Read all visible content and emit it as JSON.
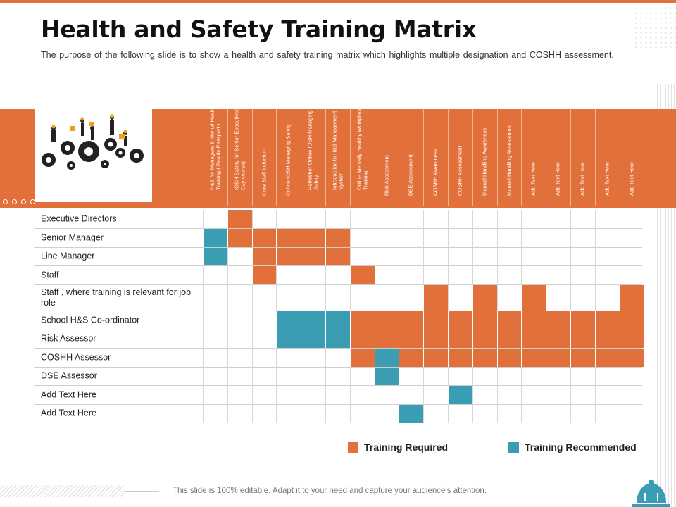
{
  "header": {
    "title": "Health and Safety Training Matrix",
    "subtitle": "The purpose of the following slide is to show a health and safety training matrix which highlights multiple designation and COSHH assessment."
  },
  "colors": {
    "required": "#e2703a",
    "recommended": "#3a9db3"
  },
  "columns": [
    "H&S for Managers & Mental Health Training ( People Passport )",
    "IOSH Safety for Senior Executives ( 1 Day course)",
    "Core Staff Induction",
    "Online IOSH Managing Safety",
    "Refresher Online IOSH Managing Safety",
    "Introduction to H&S Management System",
    "Online Mentally Healthy Workplace Training",
    "Risk Assessment",
    "DSE Assessment",
    "COSHH Awareness",
    "COSHH Assessment",
    "Manual Handling Awareness",
    "Manual Handling Assessment",
    "Add Text Here",
    "Add Text Here",
    "Add Text Here",
    "Add Text Here",
    "Add Text Here"
  ],
  "rows": [
    {
      "label": "Executive Directors",
      "cells": "-R----------------"
    },
    {
      "label": "Senior Manager",
      "cells": "CRRRRR------------"
    },
    {
      "label": "Line Manager",
      "cells": "C-RRRR------------"
    },
    {
      "label": "Staff",
      "cells": "--R---R-----------"
    },
    {
      "label": "Staff , where training is relevant  for job role",
      "cells": "---------R-R-R---R"
    },
    {
      "label": "School H&S Co-ordinator",
      "cells": "---CCCRRRRRRRRRRRR"
    },
    {
      "label": "Risk Assessor",
      "cells": "---CCCRRRRRRRRRRRR"
    },
    {
      "label": "COSHH  Assessor",
      "cells": "------RCRRRRRRRRRR"
    },
    {
      "label": "DSE Assessor",
      "cells": "-------C----------"
    },
    {
      "label": "Add Text Here",
      "cells": "----------C-------"
    },
    {
      "label": "Add Text Here",
      "cells": "--------C---------"
    }
  ],
  "legend": {
    "required_label": "Training Required",
    "recommended_label": "Training Recommended"
  },
  "footer": {
    "text": "This slide is 100% editable. Adapt it to your need and capture your audience’s attention."
  },
  "icons": {
    "illustration": "workers-on-gears-illustration",
    "corner": "hard-hat-icon"
  }
}
